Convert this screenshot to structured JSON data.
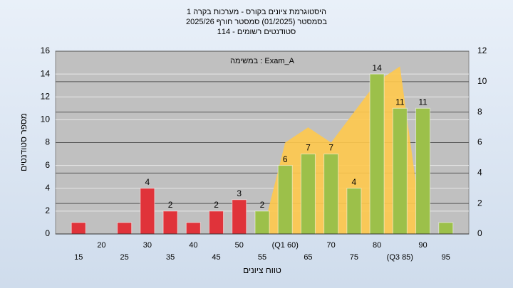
{
  "chart_data": {
    "type": "bar",
    "title": "היסטוגרמת ציונים בקורס - מערכות בקרה 1",
    "subtitles": [
      "בסמסטר (01/2025) סמסטר חורף 2025/26",
      "סטודנטים רשומים - 114"
    ],
    "annotation": "במשימה : Exam_A",
    "y_label": "מספר סטודנטים",
    "x_label": "טווח ציונים",
    "categories": [
      "15",
      "20",
      "25",
      "30",
      "35",
      "40",
      "45",
      "50",
      "55",
      "(Q1 60)",
      "65",
      "70",
      "75",
      "80",
      "(Q3 85)",
      "90",
      "95"
    ],
    "ylim": [
      0,
      16
    ],
    "yticks": [
      0,
      2,
      4,
      6,
      8,
      10,
      12,
      14,
      16
    ],
    "y2lim": [
      0,
      12
    ],
    "y2ticks": [
      0,
      2,
      4,
      6,
      8,
      10,
      12
    ],
    "grid": true,
    "series": [
      {
        "type": "bar",
        "values": [
          1,
          0,
          1,
          4,
          2,
          1,
          2,
          3,
          2,
          6,
          7,
          7,
          4,
          14,
          11,
          11,
          1
        ],
        "value_labels": [
          null,
          null,
          null,
          "4",
          "2",
          null,
          "2",
          "3",
          "2",
          "6",
          "7",
          "7",
          "4",
          "14",
          "11",
          "11",
          null
        ],
        "colors": [
          "#e0333a",
          "#e0333a",
          "#e0333a",
          "#e0333a",
          "#e0333a",
          "#e0333a",
          "#e0333a",
          "#e0333a",
          "#9cc04a",
          "#9cc04a",
          "#9cc04a",
          "#9cc04a",
          "#9cc04a",
          "#9cc04a",
          "#9cc04a",
          "#9cc04a",
          "#9cc04a"
        ]
      },
      {
        "type": "area",
        "axis": "y2",
        "color": "#ffc94d",
        "values": [
          null,
          null,
          null,
          null,
          null,
          null,
          null,
          null,
          0,
          6,
          7,
          6,
          8,
          10,
          11,
          0,
          null
        ]
      }
    ]
  }
}
